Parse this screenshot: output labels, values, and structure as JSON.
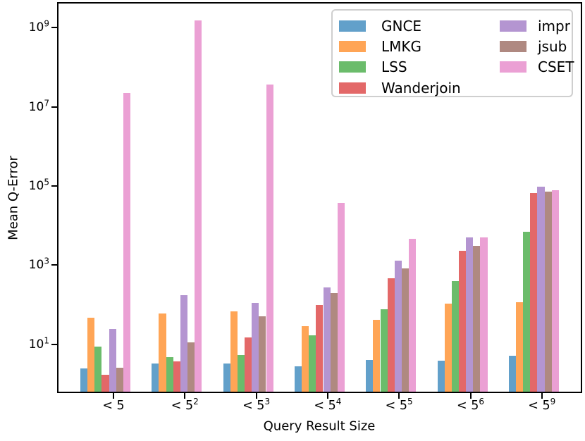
{
  "figure": {
    "background": "#ffffff",
    "axis_color": "#000000",
    "legend_border_color": "#cfcfcf"
  },
  "chart_data": {
    "type": "bar",
    "title": "",
    "xlabel": "Query Result Size",
    "ylabel": "Mean Q-Error",
    "yscale": "log",
    "grid": false,
    "legend_position": "upper right",
    "legend_columns": 2,
    "ylim_exp": [
      -0.2,
      9.61
    ],
    "y_ticks": [
      {
        "base": "10",
        "exp": "9",
        "value": 1000000000
      },
      {
        "base": "10",
        "exp": "7",
        "value": 10000000
      },
      {
        "base": "10",
        "exp": "5",
        "value": 100000
      },
      {
        "base": "10",
        "exp": "3",
        "value": 1000
      },
      {
        "base": "10",
        "exp": "1",
        "value": 10
      }
    ],
    "categories": [
      {
        "base": "< 5",
        "exp": ""
      },
      {
        "base": "< 5",
        "exp": "2"
      },
      {
        "base": "< 5",
        "exp": "3"
      },
      {
        "base": "< 5",
        "exp": "4"
      },
      {
        "base": "< 5",
        "exp": "5"
      },
      {
        "base": "< 5",
        "exp": "6"
      },
      {
        "base": "< 5",
        "exp": "9"
      }
    ],
    "series": [
      {
        "name": "GNCE",
        "color": "#62a0ca",
        "values": [
          2.4,
          3.2,
          3.2,
          2.8,
          4.0,
          3.9,
          5.2
        ]
      },
      {
        "name": "LMKG",
        "color": "#ffa556",
        "values": [
          46,
          60,
          67,
          28,
          41,
          105,
          115
        ]
      },
      {
        "name": "LSS",
        "color": "#6bbc6b",
        "values": [
          8.7,
          4.8,
          5.3,
          17,
          76,
          390,
          6900
        ]
      },
      {
        "name": "Wanderjoin",
        "color": "#e36868",
        "values": [
          1.7,
          3.7,
          15,
          97,
          460,
          2300,
          65000
        ]
      },
      {
        "name": "impr",
        "color": "#b495d1",
        "values": [
          24,
          175,
          110,
          270,
          1300,
          5100,
          94000
        ]
      },
      {
        "name": "jsub",
        "color": "#af8981",
        "values": [
          2.5,
          11,
          51,
          200,
          840,
          3100,
          72000
        ]
      },
      {
        "name": "CSET",
        "color": "#eba0d4",
        "values": [
          22000000,
          1500000000,
          37000000,
          37000,
          4600,
          5000,
          79000
        ]
      }
    ]
  }
}
